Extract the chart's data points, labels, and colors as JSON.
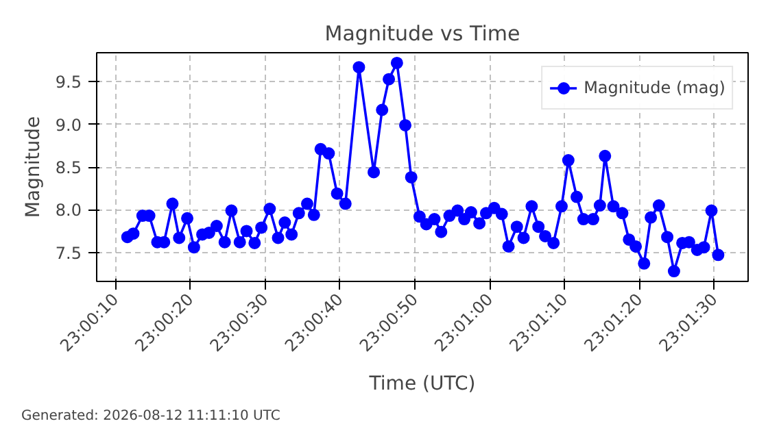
{
  "chart_data": {
    "type": "line",
    "title": "Magnitude vs Time",
    "xlabel": "Time (UTC)",
    "ylabel": "Magnitude",
    "annotations": [
      "Generated: 2026-08-12 11:11:10 UTC"
    ],
    "x": [
      23.00322,
      23.00344,
      23.00378,
      23.00403,
      23.00433,
      23.00458,
      23.00489,
      23.00514,
      23.00544,
      23.00569,
      23.006,
      23.00625,
      23.00653,
      23.00683,
      23.00708,
      23.00739,
      23.00764,
      23.00794,
      23.00819,
      23.0085,
      23.00881,
      23.00906,
      23.00931,
      23.00958,
      23.00989,
      23.01014,
      23.01039,
      23.01069,
      23.011,
      23.01131,
      23.01181,
      23.01236,
      23.01267,
      23.01292,
      23.01322,
      23.01353,
      23.01375,
      23.01406,
      23.01431,
      23.01461,
      23.01486,
      23.01517,
      23.01547,
      23.01572,
      23.01597,
      23.01628,
      23.01653,
      23.01683,
      23.01711,
      23.01736,
      23.01767,
      23.01792,
      23.01822,
      23.01847,
      23.01872,
      23.01903,
      23.01933,
      23.01958,
      23.01989,
      23.02014,
      23.0205,
      23.02075,
      23.02094,
      23.02125,
      23.02158,
      23.02183,
      23.02208,
      23.02239,
      23.02264,
      23.02294,
      23.02325,
      23.0235,
      23.02381,
      23.02406,
      23.02436,
      23.02461,
      23.02489,
      23.02514
    ],
    "series": [
      {
        "name": "Magnitude (mag)",
        "color": "#0000ff",
        "values": [
          7.68,
          7.72,
          7.93,
          7.93,
          7.62,
          7.62,
          8.07,
          7.67,
          7.9,
          7.56,
          7.71,
          7.73,
          7.81,
          7.62,
          7.99,
          7.62,
          7.75,
          7.61,
          7.79,
          8.01,
          7.67,
          7.85,
          7.71,
          7.96,
          8.07,
          7.94,
          8.71,
          8.66,
          8.19,
          8.07,
          9.67,
          8.44,
          9.17,
          9.53,
          9.72,
          8.99,
          8.38,
          7.92,
          7.83,
          7.89,
          7.74,
          7.93,
          7.99,
          7.89,
          7.97,
          7.84,
          7.96,
          8.02,
          7.95,
          7.57,
          7.8,
          7.67,
          8.04,
          7.8,
          7.69,
          7.61,
          8.04,
          8.58,
          8.15,
          7.89,
          7.89,
          8.05,
          8.63,
          8.04,
          7.96,
          7.65,
          7.57,
          7.37,
          7.91,
          8.05,
          7.68,
          7.28,
          7.61,
          7.62,
          7.53,
          7.56,
          7.99,
          7.47
        ]
      }
    ],
    "xlim": [
      23.00208,
      23.02625
    ],
    "xticks": [
      {
        "value": 23.002778,
        "label": "23:00:10"
      },
      {
        "value": 23.005556,
        "label": "23:00:20"
      },
      {
        "value": 23.008333,
        "label": "23:00:30"
      },
      {
        "value": 23.011111,
        "label": "23:00:40"
      },
      {
        "value": 23.013889,
        "label": "23:00:50"
      },
      {
        "value": 23.016667,
        "label": "23:01:00"
      },
      {
        "value": 23.019444,
        "label": "23:01:10"
      },
      {
        "value": 23.022222,
        "label": "23:01:20"
      },
      {
        "value": 23.025,
        "label": "23:01:30"
      }
    ],
    "ylim": [
      7.16,
      9.84
    ],
    "yticks": [
      {
        "value": 7.5,
        "label": "7.5"
      },
      {
        "value": 8.0,
        "label": "8.0"
      },
      {
        "value": 8.5,
        "label": "8.5"
      },
      {
        "value": 9.0,
        "label": "9.0"
      },
      {
        "value": 9.5,
        "label": "9.5"
      }
    ],
    "grid": true,
    "legend": "top right",
    "marker": "circle",
    "line_style": "solid"
  }
}
